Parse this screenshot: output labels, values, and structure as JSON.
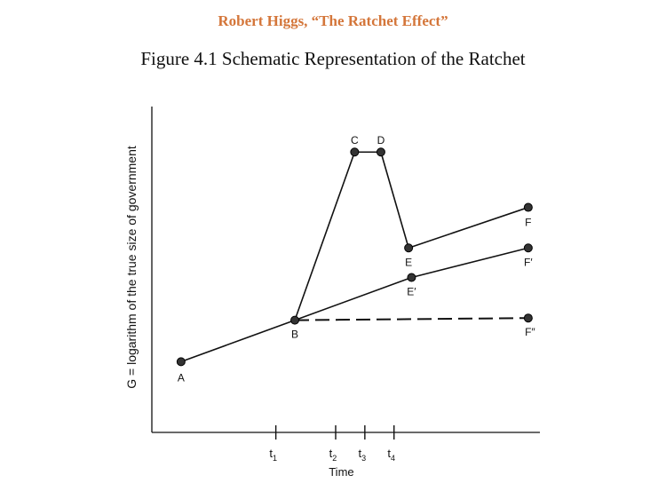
{
  "header": {
    "text": "Robert Higgs, “The Ratchet Effect”"
  },
  "figure_title": "Figure 4.1    Schematic Representation of the Ratchet",
  "chart_data": {
    "type": "line",
    "xlabel": "Time",
    "ylabel": "G = logarithm of the true size of government",
    "x_ticks": [
      {
        "name": "t1",
        "main": "t",
        "sub": "1",
        "x": 4.25
      },
      {
        "name": "t2",
        "main": "t",
        "sub": "2",
        "x": 6.3
      },
      {
        "name": "t3",
        "main": "t",
        "sub": "3",
        "x": 7.3
      },
      {
        "name": "t4",
        "main": "t",
        "sub": "4",
        "x": 8.3
      }
    ],
    "xlim": [
      0,
      13.3
    ],
    "ylim": [
      0,
      10.6
    ],
    "points": {
      "A": {
        "label": "A",
        "x": 1.0,
        "y": 2.3
      },
      "B": {
        "label": "B",
        "x": 4.9,
        "y": 3.65
      },
      "C": {
        "label": "C",
        "x": 6.95,
        "y": 9.12
      },
      "D": {
        "label": "D",
        "x": 7.85,
        "y": 9.12
      },
      "E": {
        "label": "E",
        "x": 8.8,
        "y": 6.0
      },
      "F": {
        "label": "F",
        "x": 12.9,
        "y": 7.32
      },
      "E1": {
        "label": "E′",
        "x": 8.9,
        "y": 5.04
      },
      "F1": {
        "label": "F′",
        "x": 12.9,
        "y": 6.0
      },
      "F2": {
        "label": "F″",
        "x": 12.9,
        "y": 3.72
      }
    },
    "series": [
      {
        "path": [
          "A",
          "B"
        ],
        "style": "solid"
      },
      {
        "path": [
          "B",
          "C",
          "D",
          "E",
          "F"
        ],
        "style": "solid"
      },
      {
        "path": [
          "B",
          "E1",
          "F1"
        ],
        "style": "solid"
      },
      {
        "path": [
          "B",
          "F2"
        ],
        "style": "dashed"
      }
    ]
  }
}
